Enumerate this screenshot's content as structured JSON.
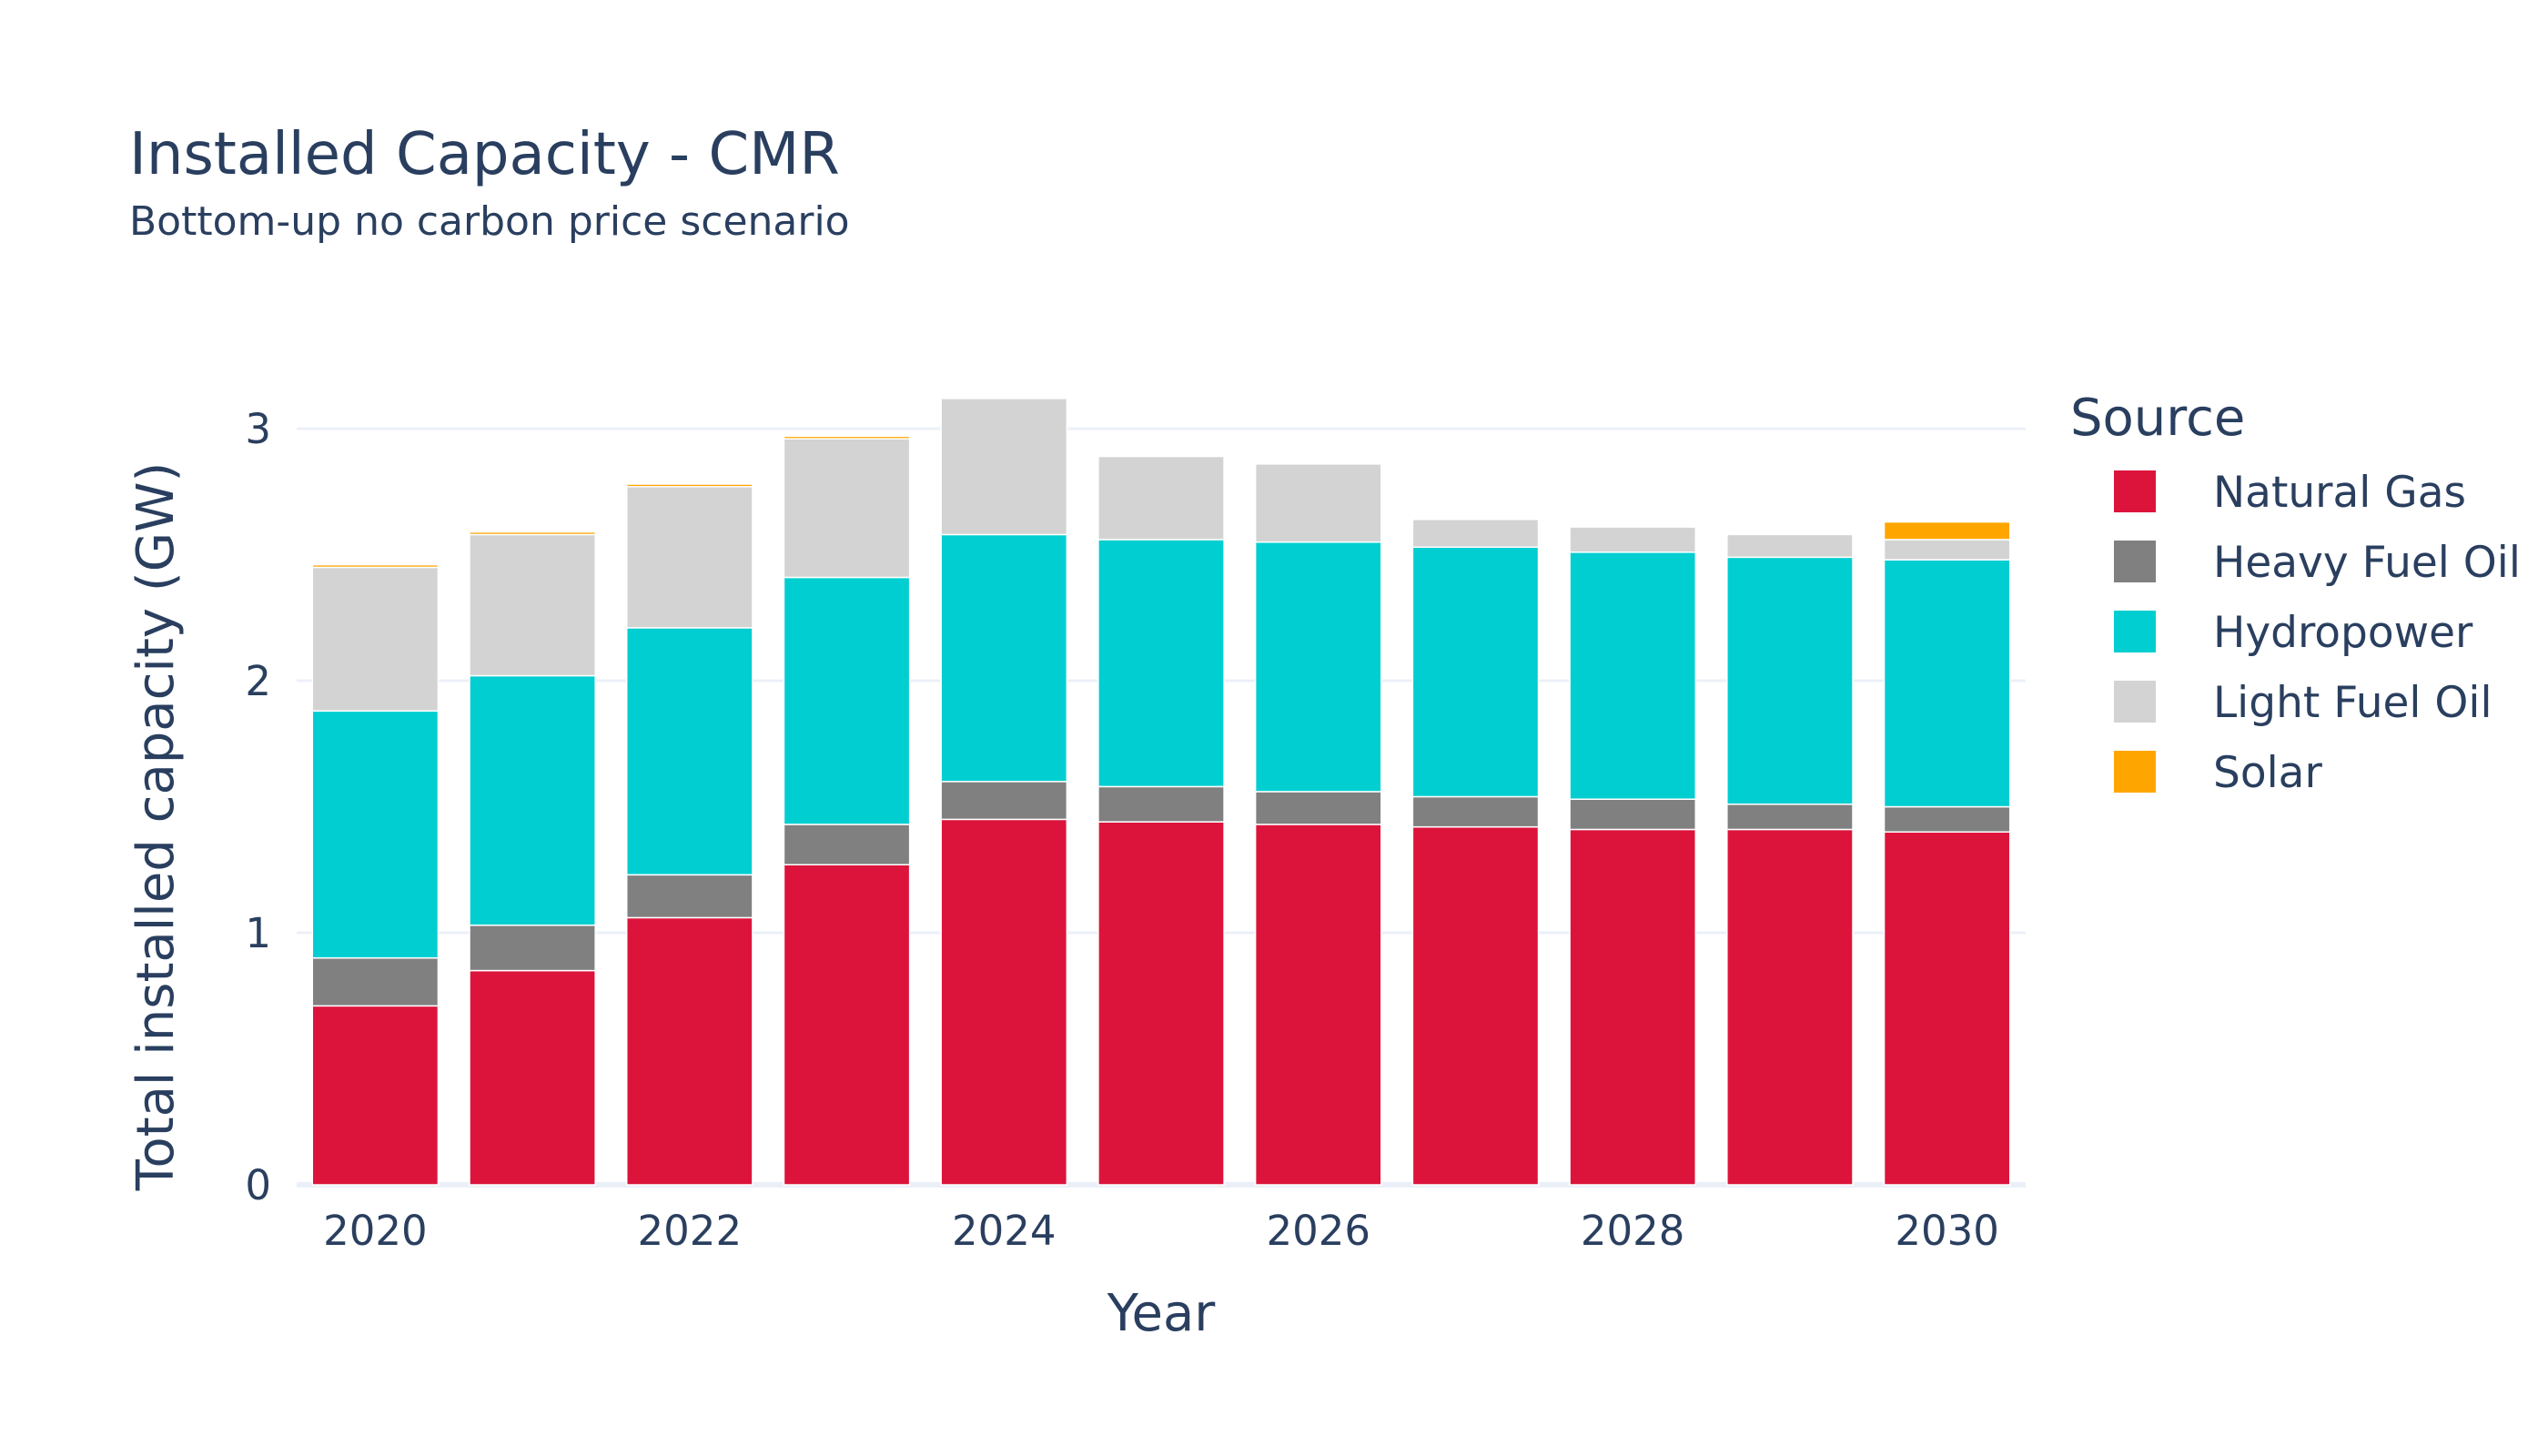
{
  "chart_data": {
    "type": "bar",
    "stacked": true,
    "title": "Installed Capacity - CMR",
    "subtitle": "Bottom-up no carbon price scenario",
    "xlabel": "Year",
    "ylabel": "Total installed capacity (GW)",
    "legend_title": "Source",
    "legend_position": "right",
    "grid": true,
    "ylim": [
      0,
      3.3
    ],
    "x": [
      2020,
      2021,
      2022,
      2023,
      2024,
      2025,
      2026,
      2027,
      2028,
      2029,
      2030
    ],
    "x_ticks": [
      "2020",
      "2022",
      "2024",
      "2026",
      "2028",
      "2030"
    ],
    "y_ticks": [
      "0",
      "1",
      "2",
      "3"
    ],
    "series": [
      {
        "name": "Natural Gas",
        "color": "#dc143c",
        "values": [
          0.71,
          0.85,
          1.06,
          1.27,
          1.45,
          1.44,
          1.43,
          1.42,
          1.41,
          1.41,
          1.4
        ]
      },
      {
        "name": "Heavy Fuel Oil",
        "color": "#808080",
        "values": [
          0.19,
          0.18,
          0.17,
          0.16,
          0.15,
          0.14,
          0.13,
          0.12,
          0.12,
          0.1,
          0.1
        ]
      },
      {
        "name": "Hydropower",
        "color": "#00ced1",
        "values": [
          0.98,
          0.99,
          0.98,
          0.98,
          0.98,
          0.98,
          0.99,
          0.99,
          0.98,
          0.98,
          0.98
        ]
      },
      {
        "name": "Light Fuel Oil",
        "color": "#d3d3d3",
        "values": [
          0.57,
          0.56,
          0.56,
          0.55,
          0.54,
          0.33,
          0.31,
          0.11,
          0.1,
          0.09,
          0.08
        ]
      },
      {
        "name": "Solar",
        "color": "#ffa500",
        "values": [
          0.01,
          0.01,
          0.01,
          0.01,
          0.0,
          0.0,
          0.0,
          0.0,
          0.0,
          0.0,
          0.07
        ]
      }
    ]
  }
}
